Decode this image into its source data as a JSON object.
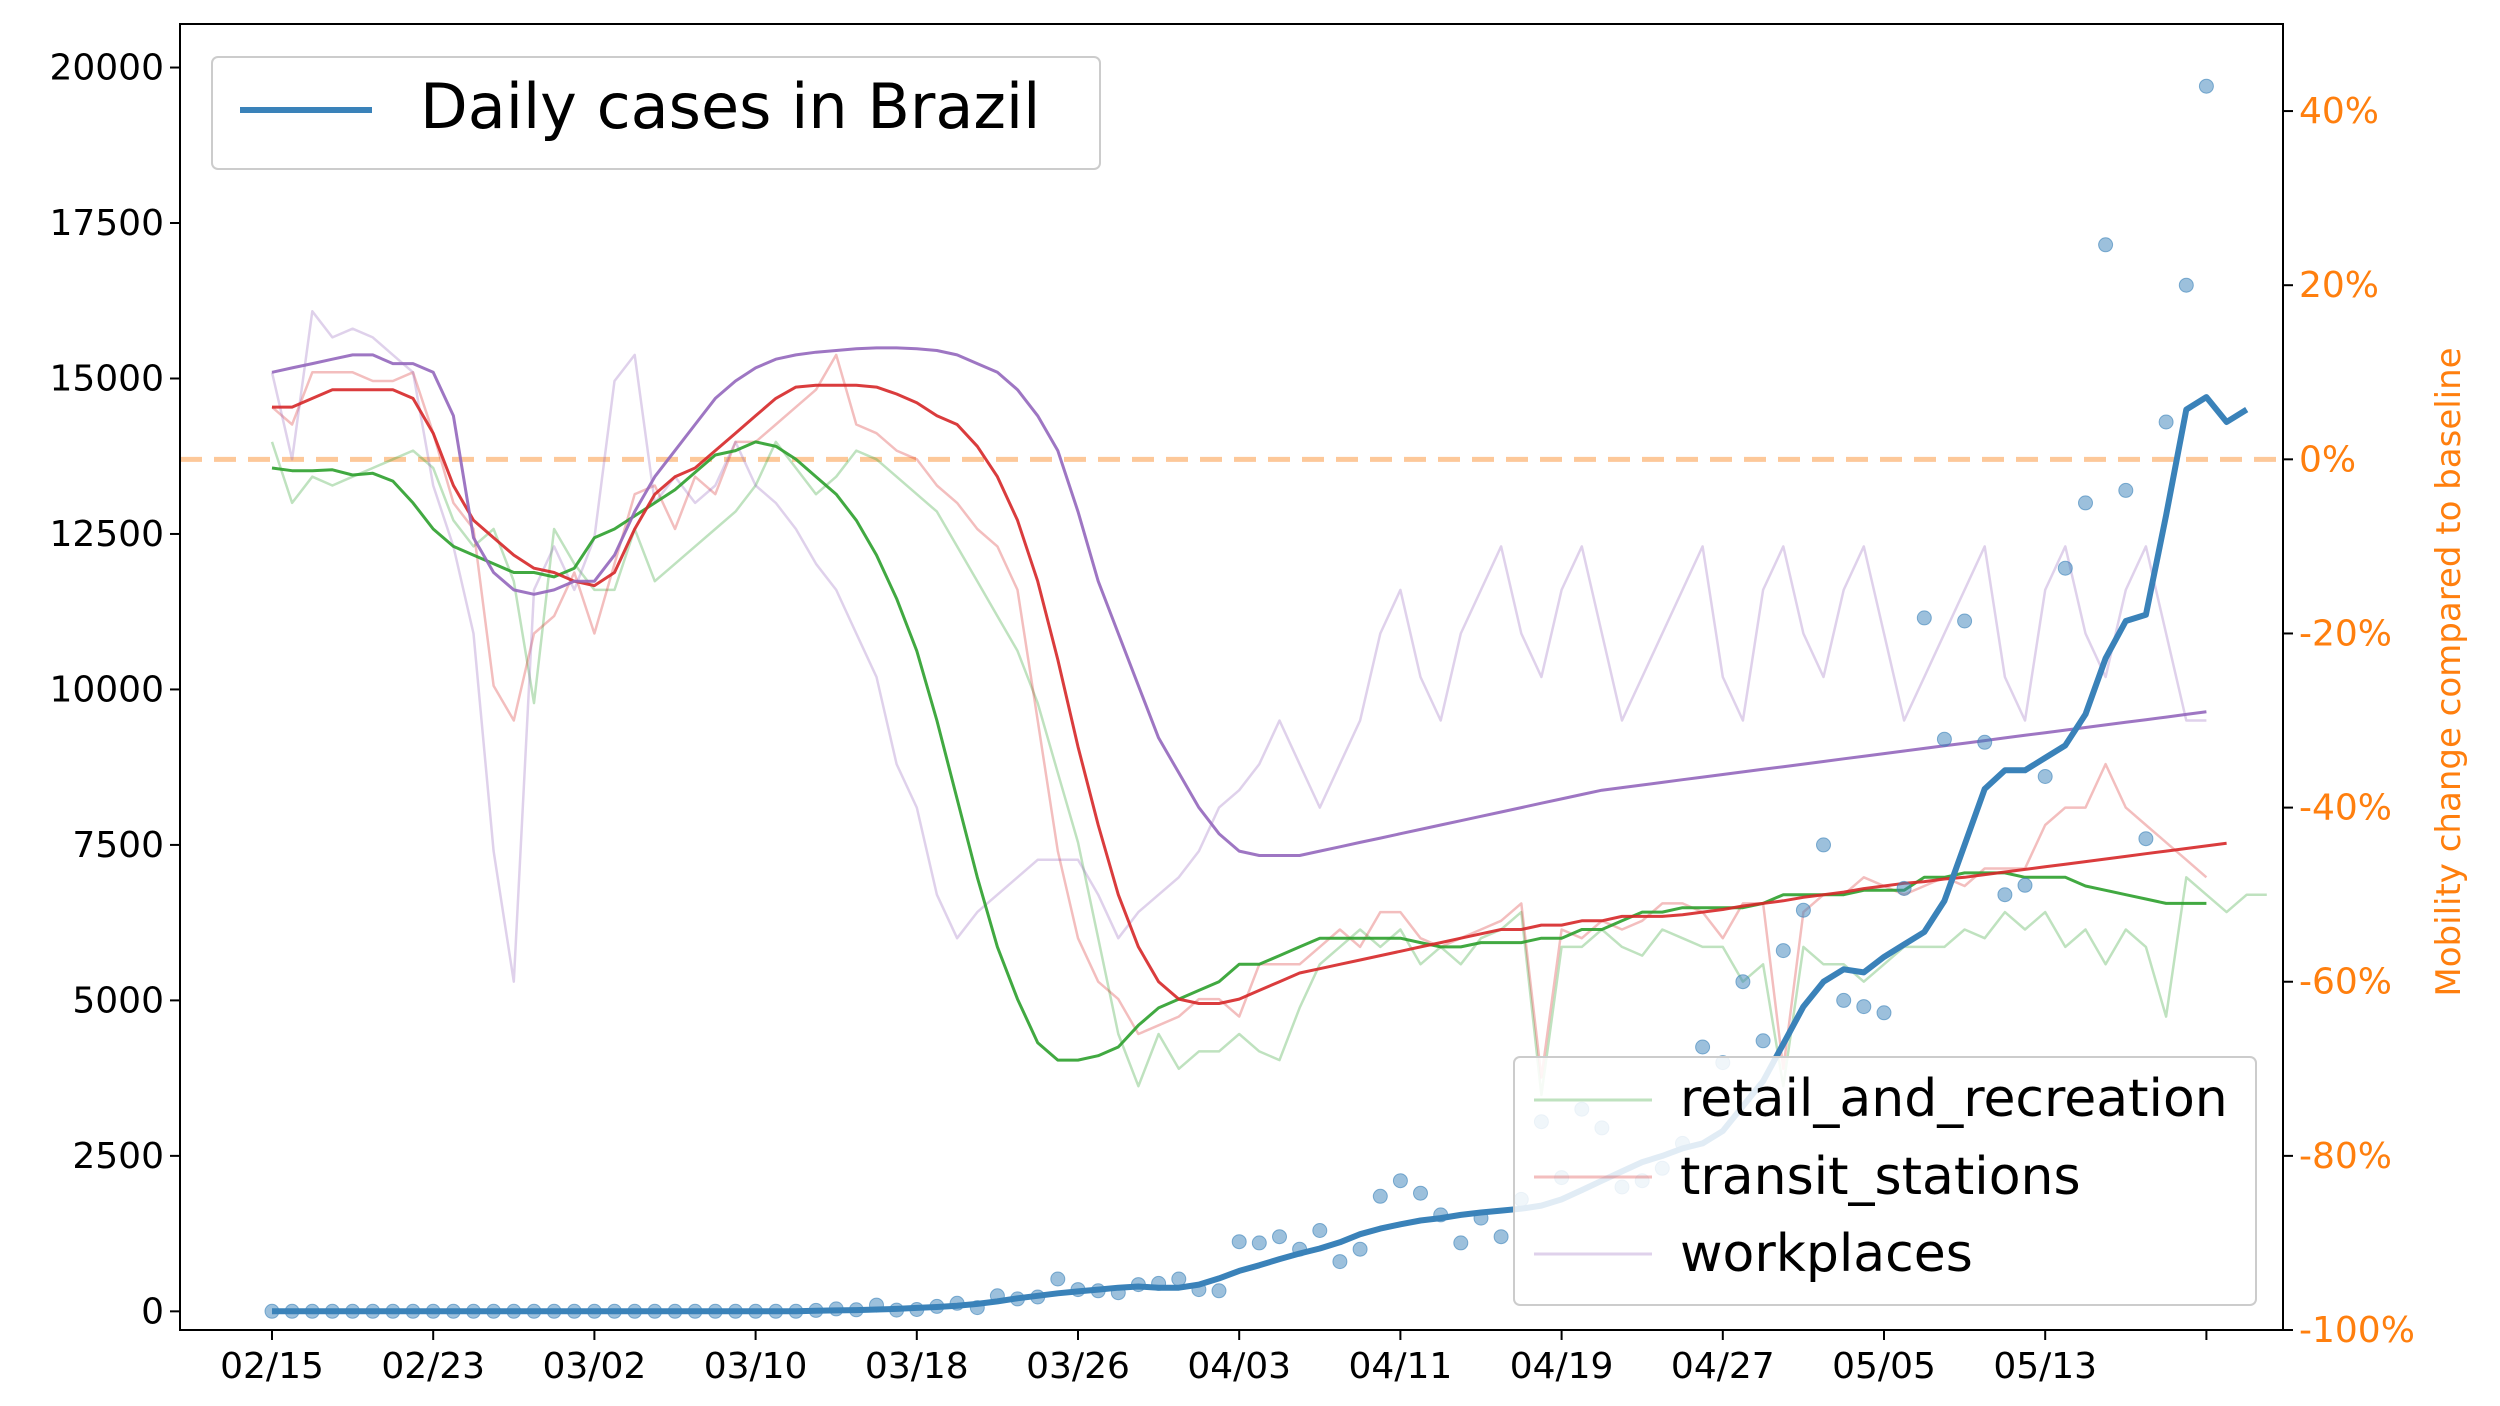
{
  "chart_data": {
    "type": "line",
    "title": "",
    "xlabel": "",
    "ylabel_left": "",
    "ylabel_right": "Mobility change compared to baseline",
    "x_tick_labels": [
      "02/15",
      "02/23",
      "03/02",
      "03/10",
      "03/18",
      "03/26",
      "04/03",
      "04/11",
      "04/19",
      "04/27",
      "05/05",
      "05/13"
    ],
    "left_axis": {
      "ylim": [
        -300,
        20700
      ],
      "ticks": [
        0,
        2500,
        5000,
        7500,
        10000,
        12500,
        15000,
        17500,
        20000
      ],
      "tick_labels": [
        "0",
        "2500",
        "5000",
        "7500",
        "10000",
        "12500",
        "15000",
        "17500",
        "20000"
      ]
    },
    "right_axis": {
      "ylim": [
        -100,
        50
      ],
      "ticks": [
        -100,
        -80,
        -60,
        -40,
        -20,
        0,
        20,
        40
      ],
      "tick_labels": [
        "-100%",
        "-80%",
        "-60%",
        "-40%",
        "-20%",
        "0%",
        "20%",
        "40%"
      ],
      "reference_line": 0
    },
    "legend_top": {
      "placement": "top-left",
      "label": "Daily cases in Brazil"
    },
    "legend_bottom": {
      "placement": "bottom-right",
      "labels": [
        "retail_and_recreation",
        "transit_stations",
        "workplaces"
      ]
    },
    "colors": {
      "cases": "#3a82b9",
      "retail_and_recreation": "#2ca02c",
      "transit_stations": "#d62728",
      "workplaces": "#9467bd",
      "baseline": "#fdc899",
      "right_axis": "#ff7f0e"
    },
    "cases_daily": [
      0,
      0,
      0,
      0,
      0,
      0,
      0,
      0,
      0,
      0,
      0,
      0,
      0,
      0,
      0,
      0,
      0,
      0,
      0,
      0,
      0,
      0,
      0,
      0,
      0,
      0,
      0,
      15,
      40,
      25,
      100,
      20,
      30,
      80,
      130,
      60,
      250,
      200,
      230,
      520,
      350,
      330,
      300,
      430,
      450,
      520,
      350,
      330,
      1120,
      1100,
      1200,
      1000,
      1300,
      800,
      1000,
      1850,
      2100,
      1900,
      1550,
      1100,
      1500,
      1200,
      1800,
      3050,
      2150,
      3250,
      2950,
      2000,
      2100,
      2300,
      2700,
      4250,
      4000,
      5300,
      4350,
      5800,
      6450,
      7500,
      5000,
      4900,
      4800,
      6800,
      11150,
      9200,
      11100,
      9150,
      6700,
      6850,
      8600,
      11950,
      13000,
      17150,
      13200,
      7600,
      14300,
      16500,
      19700
    ],
    "cases_7day_avg": [
      0,
      0,
      0,
      0,
      0,
      0,
      0,
      0,
      0,
      0,
      0,
      0,
      0,
      0,
      0,
      0,
      0,
      0,
      0,
      0,
      0,
      0,
      0,
      0,
      0,
      0,
      0,
      10,
      15,
      20,
      30,
      40,
      55,
      70,
      90,
      120,
      160,
      210,
      250,
      290,
      320,
      350,
      380,
      400,
      380,
      380,
      430,
      530,
      650,
      740,
      840,
      930,
      1010,
      1110,
      1240,
      1330,
      1400,
      1460,
      1500,
      1550,
      1590,
      1620,
      1650,
      1700,
      1800,
      1950,
      2100,
      2250,
      2400,
      2500,
      2620,
      2700,
      2900,
      3300,
      3700,
      4300,
      4900,
      5300,
      5500,
      5450,
      5700,
      5900,
      6100,
      6600,
      7500,
      8400,
      8700,
      8700,
      8900,
      9100,
      9600,
      10500,
      11100,
      11200,
      12800,
      14500,
      14700,
      14300,
      14500
    ],
    "retail_and_recreation_raw": [
      2,
      -5,
      -2,
      -3,
      -2,
      -1,
      0,
      1,
      -1,
      -7,
      -10,
      -8,
      -14,
      -28,
      -8,
      -12,
      -15,
      -15,
      -8,
      -14,
      -12,
      -10,
      -8,
      -6,
      -3,
      2,
      -1,
      -4,
      -2,
      1,
      0,
      -2,
      -4,
      -6,
      -10,
      -14,
      -18,
      -22,
      -28,
      -36,
      -44,
      -55,
      -66,
      -72,
      -66,
      -70,
      -68,
      -68,
      -66,
      -68,
      -69,
      -63,
      -58,
      -56,
      -54,
      -56,
      -54,
      -58,
      -56,
      -58,
      -55,
      -54,
      -52,
      -73,
      -56,
      -56,
      -54,
      -56,
      -57,
      -54,
      -55,
      -56,
      -56,
      -60,
      -58,
      -72,
      -56,
      -58,
      -58,
      -60,
      -58,
      -56,
      -56,
      -56,
      -54,
      -55,
      -52,
      -54,
      -52,
      -56,
      -54,
      -58,
      -54,
      -56,
      -64,
      -48,
      -50,
      -52,
      -50,
      -50
    ],
    "retail_and_recreation_avg": [
      -1,
      -1.3,
      -1.3,
      -1.2,
      -1.8,
      -1.6,
      -2.5,
      -5,
      -8,
      -10,
      -11,
      -12,
      -13,
      -13,
      -13.5,
      -12.5,
      -9,
      -8,
      -6.5,
      -5,
      -3.5,
      -1.5,
      0.5,
      1,
      2,
      1.5,
      0,
      -2,
      -4,
      -7,
      -11,
      -16,
      -22,
      -30,
      -39,
      -48,
      -56,
      -62,
      -67,
      -69,
      -69,
      -68.5,
      -67.5,
      -65,
      -63,
      -62,
      -61,
      -60,
      -58,
      -58,
      -57,
      -56,
      -55,
      -55,
      -55,
      -55,
      -55,
      -55.5,
      -56,
      -56,
      -55.5,
      -55.5,
      -55.5,
      -55,
      -55,
      -54,
      -54,
      -53,
      -52,
      -52,
      -51.5,
      -51.5,
      -51.5,
      -51.5,
      -51,
      -50,
      -50,
      -50,
      -50,
      -49.5,
      -49.5,
      -49.5,
      -48,
      -48,
      -47.5,
      -47.5,
      -47.5,
      -48,
      -48,
      -48,
      -49,
      -49.5,
      -50,
      -50.5,
      -51,
      -51,
      -51
    ],
    "transit_stations_raw": [
      6,
      4,
      10,
      10,
      10,
      9,
      9,
      10,
      3,
      -5,
      -8,
      -26,
      -30,
      -20,
      -18,
      -13,
      -20,
      -12,
      -4,
      -3,
      -8,
      -2,
      -4,
      2,
      2,
      4,
      6,
      8,
      12,
      4,
      3,
      1,
      0,
      -3,
      -5,
      -8,
      -10,
      -15,
      -30,
      -45,
      -55,
      -60,
      -62,
      -66,
      -65,
      -64,
      -62,
      -62,
      -64,
      -58,
      -58,
      -58,
      -56,
      -54,
      -56,
      -52,
      -52,
      -55,
      -56,
      -55,
      -54,
      -53,
      -51,
      -71,
      -54,
      -55,
      -53,
      -54,
      -53,
      -51,
      -51,
      -52,
      -55,
      -51,
      -51,
      -70,
      -52,
      -50,
      -50,
      -48,
      -49,
      -50,
      -49,
      -48,
      -49,
      -47,
      -47,
      -47,
      -42,
      -40,
      -40,
      -35,
      -40,
      -42,
      -44,
      -46,
      -48
    ],
    "transit_stations_avg": [
      6,
      6,
      7,
      8,
      8,
      8,
      8,
      7,
      3,
      -3,
      -7,
      -9,
      -11,
      -12.5,
      -13,
      -14,
      -14.5,
      -13,
      -8,
      -4,
      -2,
      -1,
      1,
      3,
      5,
      7,
      8.3,
      8.5,
      8.5,
      8.5,
      8.3,
      7.5,
      6.5,
      5,
      4,
      1.5,
      -2,
      -7,
      -14,
      -23,
      -33,
      -42,
      -50,
      -56,
      -60,
      -62,
      -62.5,
      -62.5,
      -62,
      -61,
      -60,
      -59,
      -58.5,
      -58,
      -57.5,
      -57,
      -56.5,
      -56,
      -55.5,
      -55,
      -54.5,
      -54,
      -54,
      -53.5,
      -53.5,
      -53,
      -53,
      -52.5,
      -52.5,
      -52.5,
      -52.3,
      -52,
      -51.7,
      -51.3,
      -51,
      -50.7,
      -50.3,
      -50,
      -49.7,
      -49.3,
      -49,
      -48.7,
      -48.5,
      -48.2,
      -48,
      -47.7,
      -47.4,
      -47.1,
      -46.8,
      -46.5,
      -46.2,
      -45.9,
      -45.6,
      -45.3,
      -45,
      -44.7,
      -44.4,
      -44.1
    ],
    "workplaces_raw": [
      10,
      0,
      17,
      14,
      15,
      14,
      12,
      10,
      -3,
      -10,
      -20,
      -45,
      -60,
      -15,
      -10,
      -15,
      -9,
      9,
      12,
      -5,
      -2,
      -5,
      -3,
      2,
      -3,
      -5,
      -8,
      -12,
      -15,
      -20,
      -25,
      -35,
      -40,
      -50,
      -55,
      -52,
      -50,
      -48,
      -46,
      -46,
      -46,
      -50,
      -55,
      -52,
      -50,
      -48,
      -45,
      -40,
      -38,
      -35,
      -30,
      -35,
      -40,
      -35,
      -30,
      -20,
      -15,
      -25,
      -30,
      -20,
      -15,
      -10,
      -20,
      -25,
      -15,
      -10,
      -20,
      -30,
      -25,
      -20,
      -15,
      -10,
      -25,
      -30,
      -15,
      -10,
      -20,
      -25,
      -15,
      -10,
      -20,
      -30,
      -25,
      -20,
      -15,
      -10,
      -25,
      -30,
      -15,
      -10,
      -20,
      -25,
      -15,
      -10,
      -20,
      -30,
      -30
    ],
    "workplaces_avg": [
      10,
      10.5,
      11,
      11.5,
      12,
      12,
      11,
      11,
      10,
      5,
      -9,
      -13,
      -15,
      -15.5,
      -15,
      -14,
      -14,
      -11,
      -6,
      -2,
      1,
      4,
      7,
      9,
      10.5,
      11.5,
      12,
      12.3,
      12.5,
      12.7,
      12.8,
      12.8,
      12.7,
      12.5,
      12,
      11,
      10,
      8,
      5,
      1,
      -6,
      -14,
      -20,
      -26,
      -32,
      -36,
      -40,
      -43,
      -45,
      -45.5,
      -45.5,
      -45.5,
      -45,
      -44.5,
      -44,
      -43.5,
      -43,
      -42.5,
      -42,
      -41.5,
      -41,
      -40.5,
      -40,
      -39.5,
      -39,
      -38.5,
      -38,
      -37.7,
      -37.4,
      -37.1,
      -36.8,
      -36.5,
      -36.2,
      -35.9,
      -35.6,
      -35.3,
      -35,
      -34.7,
      -34.4,
      -34.1,
      -33.8,
      -33.5,
      -33.2,
      -32.9,
      -32.6,
      -32.3,
      -32,
      -31.7,
      -31.4,
      -31.1,
      -30.8,
      -30.5,
      -30.2,
      -29.9,
      -29.6,
      -29.3,
      -29
    ]
  }
}
